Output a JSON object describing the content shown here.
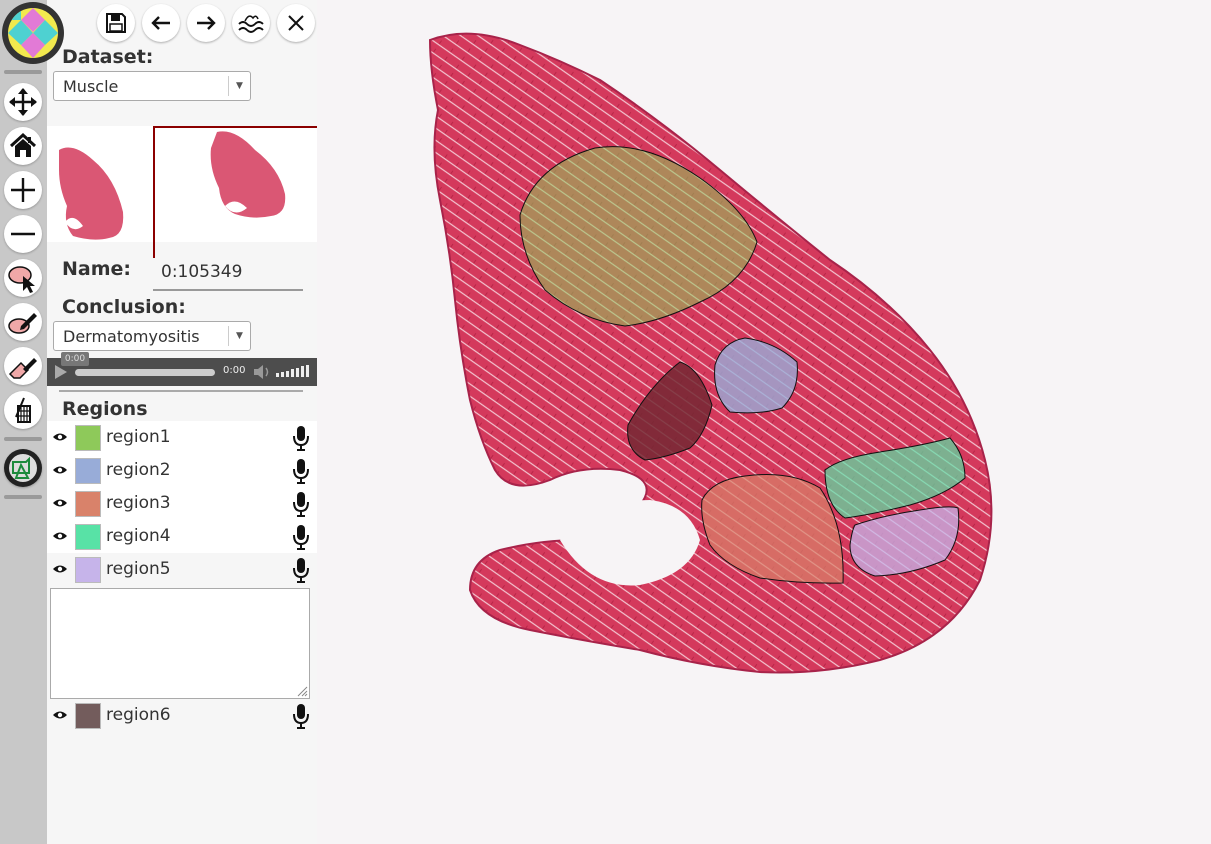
{
  "toolbar": {
    "tools": [
      "move-icon",
      "home-icon",
      "zoom-in-icon",
      "zoom-out-icon",
      "select-region-icon",
      "draw-region-icon",
      "erase-region-icon",
      "measure-icon",
      "annotation-mode-icon"
    ]
  },
  "top_buttons": [
    "save-icon",
    "undo-icon",
    "redo-icon",
    "ontology-icon",
    "close-icon"
  ],
  "dataset": {
    "label": "Dataset:",
    "value": "Muscle"
  },
  "name": {
    "label": "Name:",
    "value": "0:105349"
  },
  "conclusion": {
    "label": "Conclusion:",
    "value": "Dermatomyositis"
  },
  "audio": {
    "tooltip": "0:00",
    "time": "0:00"
  },
  "regions": {
    "label": "Regions",
    "items": [
      {
        "name": "region1",
        "color": "#8ec95a"
      },
      {
        "name": "region2",
        "color": "#98acd8"
      },
      {
        "name": "region3",
        "color": "#d9826a"
      },
      {
        "name": "region4",
        "color": "#58e2a6"
      },
      {
        "name": "region5",
        "color": "#c6b4ea"
      },
      {
        "name": "region6",
        "color": "#735c5c"
      }
    ]
  },
  "colors": {
    "tissue": "#d4395c",
    "accent": "#8b0000",
    "toolbar_bg": "#c8c8c8"
  }
}
